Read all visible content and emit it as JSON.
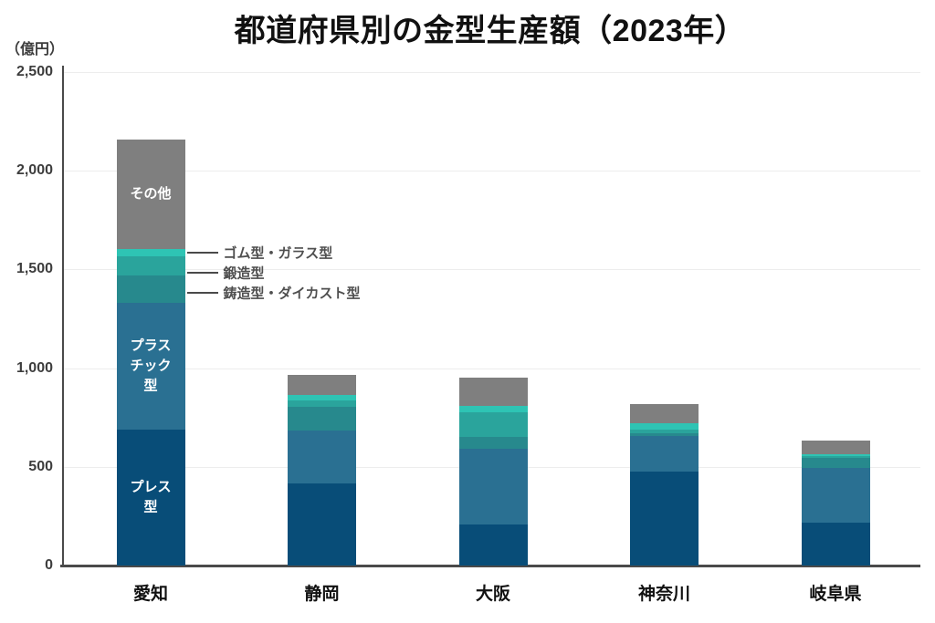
{
  "title": "都道府県別の金型生産額（2023年）",
  "y_axis": {
    "unit_label": "（億円）",
    "ticks": [
      {
        "value": 0,
        "label": "0"
      },
      {
        "value": 500,
        "label": "500"
      },
      {
        "value": 1000,
        "label": "1,000"
      },
      {
        "value": 1500,
        "label": "1,500"
      },
      {
        "value": 2000,
        "label": "2,000"
      },
      {
        "value": 2500,
        "label": "2,500"
      }
    ]
  },
  "chart_data": {
    "type": "bar",
    "stacked": true,
    "title": "都道府県別の金型生産額（2023年）",
    "ylabel": "（億円）",
    "ylim": [
      0,
      2500
    ],
    "grid": true,
    "categories": [
      "愛知",
      "静岡",
      "大阪",
      "神奈川",
      "岐阜県"
    ],
    "series": [
      {
        "name": "プレス型",
        "color": "#084d78",
        "values": [
          690,
          415,
          210,
          475,
          215
        ]
      },
      {
        "name": "プラスチック型",
        "color": "#2a7092",
        "values": [
          640,
          270,
          380,
          180,
          280
        ]
      },
      {
        "name": "鋳造型・ダイカスト型",
        "color": "#27898d",
        "values": [
          140,
          120,
          60,
          15,
          50
        ]
      },
      {
        "name": "鍛造型",
        "color": "#2aa49c",
        "values": [
          95,
          30,
          125,
          20,
          10
        ]
      },
      {
        "name": "ゴム型・ガラス型",
        "color": "#2ec4b4",
        "values": [
          40,
          30,
          35,
          30,
          10
        ]
      },
      {
        "name": "その他",
        "color": "#7f7f7f",
        "values": [
          555,
          100,
          140,
          100,
          70
        ]
      }
    ],
    "totals": [
      2160,
      965,
      950,
      820,
      635
    ],
    "in_bar_labels": [
      {
        "bar": 0,
        "series": 0,
        "lines": [
          "プレス",
          "型"
        ]
      },
      {
        "bar": 0,
        "series": 1,
        "lines": [
          "プラス",
          "チック",
          "型"
        ]
      },
      {
        "bar": 0,
        "series": 5,
        "lines": [
          "その他"
        ]
      }
    ],
    "annotations": [
      {
        "label": "ゴム型・ガラス型",
        "series": 4
      },
      {
        "label": "鍛造型",
        "series": 3
      },
      {
        "label": "鋳造型・ダイカスト型",
        "series": 2
      }
    ]
  }
}
